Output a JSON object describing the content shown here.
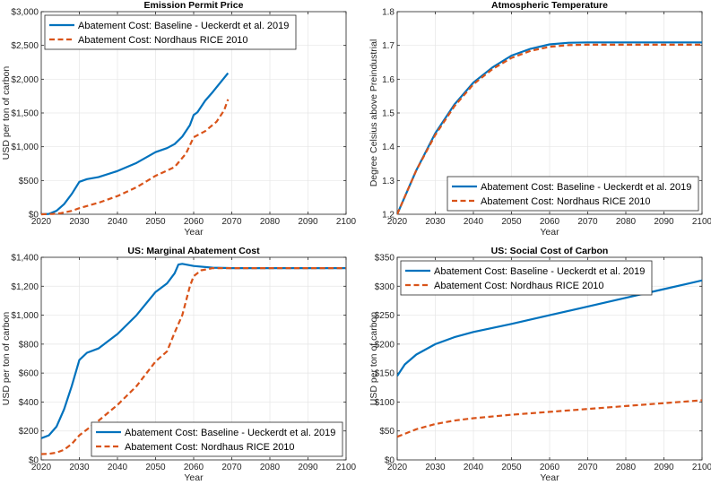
{
  "colors": {
    "baseline": "#0072BD",
    "nordhaus": "#D95319"
  },
  "chart_data": [
    {
      "type": "line",
      "title": "Emission Permit Price",
      "xlabel": "Year",
      "ylabel": "USD per ton of carbon",
      "xlim": [
        2020,
        2100
      ],
      "ylim": [
        0,
        3000
      ],
      "xticks": [
        2020,
        2030,
        2040,
        2050,
        2060,
        2070,
        2080,
        2090,
        2100
      ],
      "xtick_labels": [
        "2020",
        "2030",
        "2040",
        "2050",
        "2060",
        "2070",
        "2080",
        "2090",
        "2100"
      ],
      "yticks": [
        0,
        500,
        1000,
        1500,
        2000,
        2500,
        3000
      ],
      "ytick_labels": [
        "$0",
        "$500",
        "$1,000",
        "$1,500",
        "$2,000",
        "$2,500",
        "$3,000"
      ],
      "grid": true,
      "legend_position": "top-left",
      "series": [
        {
          "name": "Abatement Cost: Baseline - Ueckerdt et al. 2019",
          "style": "solid",
          "x": [
            2020,
            2022,
            2024,
            2026,
            2028,
            2030,
            2032,
            2035,
            2040,
            2045,
            2050,
            2053,
            2055,
            2057,
            2059,
            2060,
            2061,
            2063,
            2065,
            2067,
            2069
          ],
          "y": [
            0,
            5,
            50,
            150,
            300,
            480,
            520,
            550,
            640,
            760,
            920,
            980,
            1040,
            1150,
            1320,
            1470,
            1510,
            1680,
            1810,
            1950,
            2090
          ]
        },
        {
          "name": "Abatement Cost: Nordhaus RICE 2010",
          "style": "dashed",
          "x": [
            2020,
            2023,
            2025,
            2028,
            2030,
            2035,
            2040,
            2045,
            2050,
            2055,
            2058,
            2060,
            2063,
            2066,
            2068,
            2069
          ],
          "y": [
            0,
            5,
            15,
            50,
            90,
            170,
            270,
            400,
            570,
            700,
            900,
            1140,
            1230,
            1370,
            1540,
            1700
          ]
        }
      ]
    },
    {
      "type": "line",
      "title": "Atmospheric Temperature",
      "xlabel": "Year",
      "ylabel": "Degree Celsius above Preindustrial",
      "xlim": [
        2020,
        2100
      ],
      "ylim": [
        1.2,
        1.8
      ],
      "xticks": [
        2020,
        2030,
        2040,
        2050,
        2060,
        2070,
        2080,
        2090,
        2100
      ],
      "xtick_labels": [
        "2020",
        "2030",
        "2040",
        "2050",
        "2060",
        "2070",
        "2080",
        "2090",
        "2100"
      ],
      "yticks": [
        1.2,
        1.3,
        1.4,
        1.5,
        1.6,
        1.7,
        1.8
      ],
      "ytick_labels": [
        "1.2",
        "1.3",
        "1.4",
        "1.5",
        "1.6",
        "1.7",
        "1.8"
      ],
      "grid": true,
      "legend_position": "bottom-right",
      "series": [
        {
          "name": "Abatement Cost: Baseline - Ueckerdt et al. 2019",
          "style": "solid",
          "x": [
            2020,
            2025,
            2030,
            2035,
            2040,
            2045,
            2050,
            2055,
            2060,
            2065,
            2070,
            2080,
            2090,
            2100
          ],
          "y": [
            1.2,
            1.33,
            1.44,
            1.525,
            1.59,
            1.635,
            1.67,
            1.69,
            1.703,
            1.708,
            1.709,
            1.709,
            1.709,
            1.709
          ]
        },
        {
          "name": "Abatement Cost: Nordhaus RICE 2010",
          "style": "dashed",
          "x": [
            2020,
            2025,
            2030,
            2035,
            2040,
            2045,
            2050,
            2055,
            2060,
            2065,
            2070,
            2080,
            2090,
            2100
          ],
          "y": [
            1.2,
            1.33,
            1.435,
            1.52,
            1.585,
            1.63,
            1.663,
            1.684,
            1.696,
            1.701,
            1.702,
            1.702,
            1.702,
            1.702
          ]
        }
      ]
    },
    {
      "type": "line",
      "title": "US: Marginal Abatement Cost",
      "xlabel": "Year",
      "ylabel": "USD per ton of carbon",
      "xlim": [
        2020,
        2100
      ],
      "ylim": [
        0,
        1400
      ],
      "xticks": [
        2020,
        2030,
        2040,
        2050,
        2060,
        2070,
        2080,
        2090,
        2100
      ],
      "xtick_labels": [
        "2020",
        "2030",
        "2040",
        "2050",
        "2060",
        "2070",
        "2080",
        "2090",
        "2100"
      ],
      "yticks": [
        0,
        200,
        400,
        600,
        800,
        1000,
        1200,
        1400
      ],
      "ytick_labels": [
        "$0",
        "$200",
        "$400",
        "$600",
        "$800",
        "$1,000",
        "$1,200",
        "$1,400"
      ],
      "grid": true,
      "legend_position": "bottom-right",
      "series": [
        {
          "name": "Abatement Cost: Baseline - Ueckerdt et al. 2019",
          "style": "solid",
          "x": [
            2020,
            2022,
            2024,
            2026,
            2028,
            2030,
            2032,
            2035,
            2040,
            2045,
            2050,
            2053,
            2055,
            2056,
            2057,
            2060,
            2065,
            2070,
            2080,
            2090,
            2100
          ],
          "y": [
            150,
            170,
            230,
            350,
            510,
            690,
            740,
            770,
            870,
            1000,
            1160,
            1220,
            1290,
            1350,
            1355,
            1340,
            1328,
            1325,
            1325,
            1325,
            1325
          ]
        },
        {
          "name": "Abatement Cost: Nordhaus RICE 2010",
          "style": "dashed",
          "x": [
            2020,
            2022,
            2024,
            2026,
            2028,
            2030,
            2035,
            2040,
            2045,
            2050,
            2053,
            2055,
            2057,
            2059,
            2060,
            2062,
            2065,
            2070,
            2080,
            2090,
            2100
          ],
          "y": [
            40,
            42,
            50,
            70,
            110,
            170,
            270,
            380,
            510,
            680,
            750,
            880,
            1000,
            1200,
            1270,
            1310,
            1325,
            1325,
            1325,
            1325,
            1325
          ]
        }
      ]
    },
    {
      "type": "line",
      "title": "US: Social Cost of Carbon",
      "xlabel": "Year",
      "ylabel": "USD per ton of carbon",
      "xlim": [
        2020,
        2100
      ],
      "ylim": [
        0,
        350
      ],
      "xticks": [
        2020,
        2030,
        2040,
        2050,
        2060,
        2070,
        2080,
        2090,
        2100
      ],
      "xtick_labels": [
        "2020",
        "2030",
        "2040",
        "2050",
        "2060",
        "2070",
        "2080",
        "2090",
        "2100"
      ],
      "yticks": [
        0,
        50,
        100,
        150,
        200,
        250,
        300,
        350
      ],
      "ytick_labels": [
        "$0",
        "$50",
        "$100",
        "$150",
        "$200",
        "$250",
        "$300",
        "$350"
      ],
      "grid": true,
      "legend_position": "top-left",
      "series": [
        {
          "name": "Abatement Cost: Baseline - Ueckerdt et al. 2019",
          "style": "solid",
          "x": [
            2020,
            2022,
            2025,
            2030,
            2035,
            2040,
            2045,
            2050,
            2060,
            2070,
            2080,
            2090,
            2100
          ],
          "y": [
            145,
            165,
            182,
            200,
            212,
            221,
            228,
            235,
            250,
            265,
            280,
            295,
            310
          ]
        },
        {
          "name": "Abatement Cost: Nordhaus RICE 2010",
          "style": "dashed",
          "x": [
            2020,
            2025,
            2030,
            2035,
            2040,
            2050,
            2060,
            2070,
            2080,
            2090,
            2100
          ],
          "y": [
            40,
            53,
            62,
            68,
            72,
            78,
            83,
            88,
            93,
            98,
            103
          ]
        }
      ]
    }
  ]
}
